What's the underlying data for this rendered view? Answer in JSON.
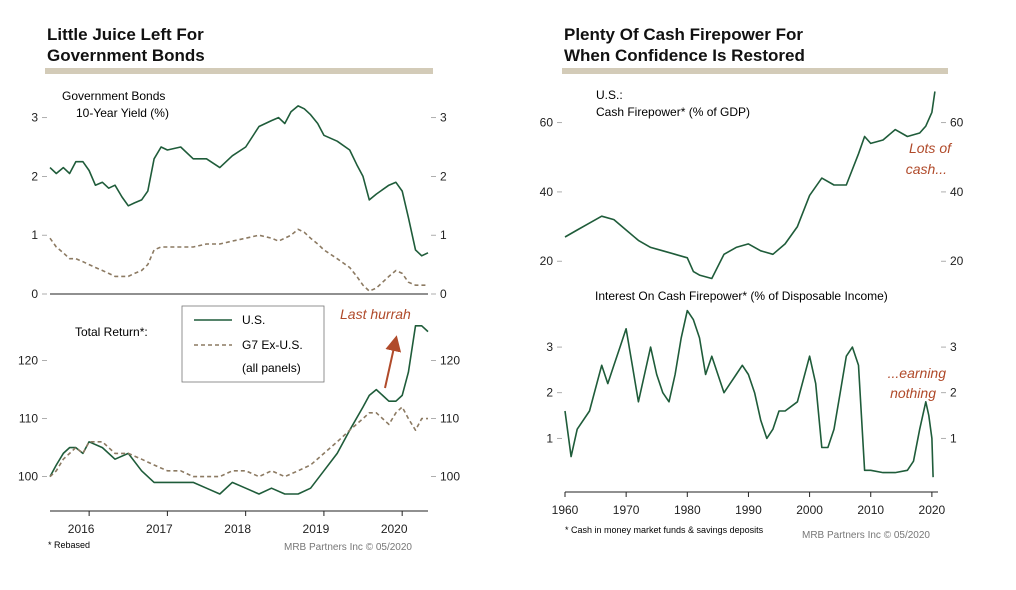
{
  "left_panel": {
    "title_line1": "Little Juice Left For",
    "title_line2": "Government Bonds",
    "footnote": "* Rebased",
    "credit": "MRB Partners Inc © 05/2020"
  },
  "right_panel": {
    "title_line1": "Plenty Of Cash Firepower For",
    "title_line2": "When Confidence Is Restored",
    "footnote": "* Cash in money market funds & savings deposits",
    "credit": "MRB Partners Inc © 05/2020"
  },
  "colors": {
    "us_line": "#1f5c3a",
    "g7_line": "#8c7a62",
    "annotation": "#b04a2a",
    "title_bar": "#d3cbb8",
    "axis": "#333333"
  },
  "chart_data": [
    {
      "id": "yield",
      "type": "line",
      "title_line1": "Government Bonds",
      "title_line2": "10-Year Yield (%)",
      "ylim": [
        0,
        3.3
      ],
      "yticks": [
        "0",
        "1",
        "2",
        "3"
      ],
      "ytick_values": [
        0,
        1,
        2,
        3
      ],
      "xlim": [
        2015.5,
        2020.33
      ],
      "series": [
        {
          "name": "U.S.",
          "x": [
            2015.5,
            2015.58,
            2015.67,
            2015.75,
            2015.83,
            2015.92,
            2016.0,
            2016.08,
            2016.17,
            2016.25,
            2016.33,
            2016.42,
            2016.5,
            2016.58,
            2016.67,
            2016.75,
            2016.83,
            2016.92,
            2017.0,
            2017.17,
            2017.33,
            2017.5,
            2017.67,
            2017.83,
            2018.0,
            2018.17,
            2018.33,
            2018.42,
            2018.5,
            2018.58,
            2018.67,
            2018.75,
            2018.83,
            2018.92,
            2019.0,
            2019.17,
            2019.33,
            2019.42,
            2019.5,
            2019.58,
            2019.67,
            2019.83,
            2019.92,
            2020.0,
            2020.08,
            2020.17,
            2020.25,
            2020.33
          ],
          "values": [
            2.15,
            2.05,
            2.15,
            2.05,
            2.25,
            2.25,
            2.1,
            1.85,
            1.9,
            1.8,
            1.85,
            1.65,
            1.5,
            1.55,
            1.6,
            1.75,
            2.3,
            2.5,
            2.45,
            2.5,
            2.3,
            2.3,
            2.15,
            2.35,
            2.5,
            2.85,
            2.95,
            3.0,
            2.9,
            3.1,
            3.2,
            3.15,
            3.05,
            2.9,
            2.7,
            2.6,
            2.45,
            2.2,
            2.0,
            1.6,
            1.7,
            1.85,
            1.9,
            1.75,
            1.3,
            0.75,
            0.65,
            0.7
          ]
        },
        {
          "name": "G7 Ex-U.S.",
          "x": [
            2015.5,
            2015.58,
            2015.67,
            2015.75,
            2015.83,
            2015.92,
            2016.0,
            2016.08,
            2016.17,
            2016.25,
            2016.33,
            2016.42,
            2016.5,
            2016.58,
            2016.67,
            2016.75,
            2016.83,
            2016.92,
            2017.0,
            2017.17,
            2017.33,
            2017.5,
            2017.67,
            2017.83,
            2018.0,
            2018.17,
            2018.33,
            2018.42,
            2018.5,
            2018.58,
            2018.67,
            2018.75,
            2018.83,
            2018.92,
            2019.0,
            2019.17,
            2019.33,
            2019.42,
            2019.5,
            2019.58,
            2019.67,
            2019.83,
            2019.92,
            2020.0,
            2020.08,
            2020.17,
            2020.25,
            2020.33
          ],
          "values": [
            0.95,
            0.8,
            0.7,
            0.6,
            0.6,
            0.55,
            0.5,
            0.45,
            0.4,
            0.35,
            0.3,
            0.3,
            0.3,
            0.35,
            0.4,
            0.5,
            0.75,
            0.8,
            0.8,
            0.8,
            0.8,
            0.85,
            0.85,
            0.9,
            0.95,
            1.0,
            0.95,
            0.9,
            0.95,
            1.0,
            1.1,
            1.05,
            0.95,
            0.85,
            0.75,
            0.6,
            0.45,
            0.3,
            0.15,
            0.05,
            0.1,
            0.3,
            0.4,
            0.35,
            0.2,
            0.15,
            0.15,
            0.15
          ]
        }
      ]
    },
    {
      "id": "total_return",
      "type": "line",
      "ylabel": "Total Return*:",
      "ylim": [
        97,
        127
      ],
      "yticks": [
        "100",
        "110",
        "120"
      ],
      "ytick_values": [
        100,
        110,
        120
      ],
      "xlim": [
        2015.5,
        2020.33
      ],
      "xticks": [
        "2016",
        "2017",
        "2018",
        "2019",
        "2020"
      ],
      "xtick_values": [
        2016,
        2017,
        2018,
        2019,
        2020
      ],
      "legend": {
        "entries": [
          "U.S.",
          "G7 Ex-U.S.",
          "(all panels)"
        ],
        "placement": "center"
      },
      "annotation": "Last hurrah",
      "series": [
        {
          "name": "U.S.",
          "x": [
            2015.5,
            2015.58,
            2015.67,
            2015.75,
            2015.83,
            2015.92,
            2016.0,
            2016.17,
            2016.33,
            2016.5,
            2016.67,
            2016.83,
            2017.0,
            2017.17,
            2017.33,
            2017.5,
            2017.67,
            2017.83,
            2018.0,
            2018.17,
            2018.33,
            2018.5,
            2018.67,
            2018.83,
            2019.0,
            2019.17,
            2019.33,
            2019.5,
            2019.58,
            2019.67,
            2019.75,
            2019.83,
            2019.92,
            2020.0,
            2020.08,
            2020.17,
            2020.25,
            2020.33
          ],
          "values": [
            100,
            102,
            104,
            105,
            105,
            104,
            106,
            105,
            103,
            104,
            101,
            99,
            99,
            99,
            99,
            98,
            97,
            99,
            98,
            97,
            98,
            97,
            97,
            98,
            101,
            104,
            108,
            112,
            114,
            115,
            114,
            113,
            113,
            114,
            118,
            126,
            126,
            125
          ]
        },
        {
          "name": "G7 Ex-U.S.",
          "x": [
            2015.5,
            2015.58,
            2015.67,
            2015.75,
            2015.83,
            2015.92,
            2016.0,
            2016.17,
            2016.33,
            2016.5,
            2016.67,
            2016.83,
            2017.0,
            2017.17,
            2017.33,
            2017.5,
            2017.67,
            2017.83,
            2018.0,
            2018.17,
            2018.33,
            2018.5,
            2018.67,
            2018.83,
            2019.0,
            2019.17,
            2019.33,
            2019.5,
            2019.58,
            2019.67,
            2019.75,
            2019.83,
            2019.92,
            2020.0,
            2020.08,
            2020.17,
            2020.25,
            2020.33
          ],
          "values": [
            100,
            101,
            103,
            104,
            105,
            104,
            106,
            106,
            104,
            104,
            103,
            102,
            101,
            101,
            100,
            100,
            100,
            101,
            101,
            100,
            101,
            100,
            101,
            102,
            104,
            106,
            108,
            110,
            111,
            111,
            110,
            109,
            111,
            112,
            110,
            108,
            110,
            110
          ]
        }
      ]
    },
    {
      "id": "cash_firepower",
      "type": "line",
      "title_line1": "U.S.:",
      "title_line2": "Cash Firepower* (% of GDP)",
      "ylim": [
        14,
        70
      ],
      "yticks": [
        "20",
        "40",
        "60"
      ],
      "ytick_values": [
        20,
        40,
        60
      ],
      "xlim": [
        1960,
        2021
      ],
      "annotation_line1": "Lots of",
      "annotation_line2": "cash...",
      "series": [
        {
          "name": "",
          "x": [
            1960,
            1962,
            1964,
            1966,
            1968,
            1970,
            1972,
            1974,
            1976,
            1978,
            1980,
            1981,
            1982,
            1984,
            1986,
            1988,
            1990,
            1992,
            1994,
            1996,
            1998,
            2000,
            2002,
            2004,
            2006,
            2008,
            2009,
            2010,
            2012,
            2014,
            2016,
            2018,
            2019,
            2020,
            2020.5
          ],
          "values": [
            27,
            29,
            31,
            33,
            32,
            29,
            26,
            24,
            23,
            22,
            21,
            17,
            16,
            15,
            22,
            24,
            25,
            23,
            22,
            25,
            30,
            39,
            44,
            42,
            42,
            51,
            56,
            54,
            55,
            58,
            56,
            57,
            59,
            63,
            69
          ]
        }
      ]
    },
    {
      "id": "interest_on_cash",
      "type": "line",
      "title": "Interest On Cash Firepower* (% of Disposable Income)",
      "ylim": [
        0,
        3.9
      ],
      "yticks": [
        "1",
        "2",
        "3"
      ],
      "ytick_values": [
        1,
        2,
        3
      ],
      "xlim": [
        1960,
        2021
      ],
      "xticks": [
        "1960",
        "1970",
        "1980",
        "1990",
        "2000",
        "2010",
        "2020"
      ],
      "xtick_values": [
        1960,
        1970,
        1980,
        1990,
        2000,
        2010,
        2020
      ],
      "annotation_line1": "...earning",
      "annotation_line2": "nothing",
      "series": [
        {
          "name": "",
          "x": [
            1960,
            1961,
            1962,
            1964,
            1966,
            1967,
            1968,
            1969,
            1970,
            1971,
            1972,
            1973,
            1974,
            1975,
            1976,
            1977,
            1978,
            1979,
            1980,
            1981,
            1982,
            1983,
            1984,
            1985,
            1986,
            1987,
            1988,
            1989,
            1990,
            1991,
            1992,
            1993,
            1994,
            1995,
            1996,
            1998,
            2000,
            2001,
            2002,
            2003,
            2004,
            2005,
            2006,
            2007,
            2008,
            2009,
            2010,
            2012,
            2014,
            2016,
            2017,
            2018,
            2019,
            2019.5,
            2020,
            2020.2
          ],
          "values": [
            1.6,
            0.6,
            1.2,
            1.6,
            2.6,
            2.2,
            2.6,
            3.0,
            3.4,
            2.6,
            1.8,
            2.4,
            3.0,
            2.4,
            2.0,
            1.8,
            2.4,
            3.2,
            3.8,
            3.6,
            3.2,
            2.4,
            2.8,
            2.4,
            2.0,
            2.2,
            2.4,
            2.6,
            2.4,
            2.0,
            1.4,
            1.0,
            1.2,
            1.6,
            1.6,
            1.8,
            2.8,
            2.2,
            0.8,
            0.8,
            1.2,
            2.0,
            2.8,
            3.0,
            2.6,
            0.3,
            0.3,
            0.25,
            0.25,
            0.3,
            0.5,
            1.2,
            1.8,
            1.5,
            1.0,
            0.15
          ]
        }
      ]
    }
  ]
}
